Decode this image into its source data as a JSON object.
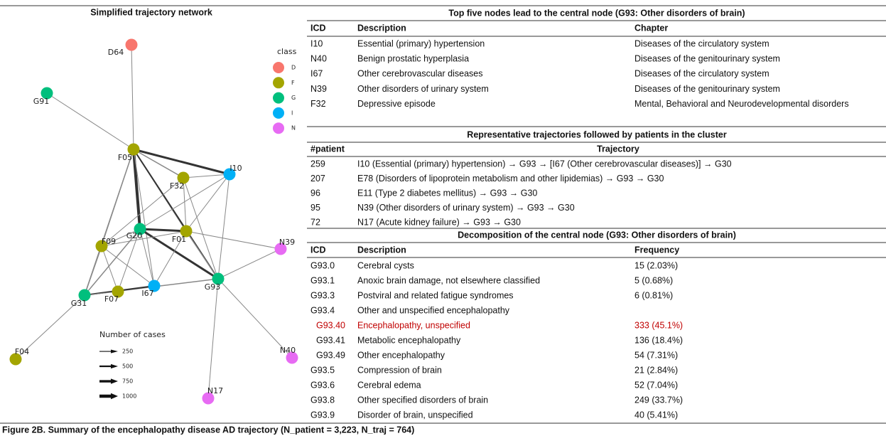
{
  "network": {
    "title": "Simplified trajectory network",
    "nodes": [
      "D64",
      "G91",
      "F05",
      "F32",
      "I10",
      "G20",
      "F01",
      "F09",
      "N39",
      "G93",
      "I67",
      "F07",
      "G31",
      "F04",
      "N40",
      "N17"
    ],
    "legend_class": {
      "title": "class",
      "items": [
        {
          "label": "D",
          "color": "#f8766d"
        },
        {
          "label": "F",
          "color": "#a3a500"
        },
        {
          "label": "G",
          "color": "#00bf7d"
        },
        {
          "label": "I",
          "color": "#00b0f6"
        },
        {
          "label": "N",
          "color": "#e76bf3"
        }
      ]
    },
    "legend_cases": {
      "title": "Number of cases",
      "items": [
        250,
        500,
        750,
        1000
      ]
    }
  },
  "table_top_nodes": {
    "title": "Top five nodes lead to the central node (G93: Other disorders of brain)",
    "columns": [
      "ICD",
      "Description",
      "Chapter"
    ],
    "rows": [
      [
        "I10",
        "Essential (primary) hypertension",
        "Diseases of the circulatory system"
      ],
      [
        "N40",
        "Benign prostatic hyperplasia",
        "Diseases of the genitourinary system"
      ],
      [
        "I67",
        "Other cerebrovascular diseases",
        "Diseases of the circulatory system"
      ],
      [
        "N39",
        "Other disorders of urinary system",
        "Diseases of the genitourinary system"
      ],
      [
        "F32",
        "Depressive episode",
        "Mental, Behavioral and Neurodevelopmental disorders"
      ]
    ]
  },
  "table_trajectories": {
    "title": "Representative trajectories followed by patients in the cluster",
    "columns": [
      "#patient",
      "Trajectory"
    ],
    "rows": [
      [
        "259",
        "I10 (Essential (primary) hypertension) → G93 → [I67 (Other cerebrovascular diseases)] → G30"
      ],
      [
        "207",
        "E78 (Disorders of lipoprotein metabolism and other lipidemias) → G93 → G30"
      ],
      [
        "96",
        "E11 (Type 2 diabetes mellitus) → G93 → G30"
      ],
      [
        "95",
        "N39 (Other disorders of urinary system) → G93 → G30"
      ],
      [
        "72",
        "N17 (Acute kidney failure) → G93 → G30"
      ]
    ]
  },
  "table_decomposition": {
    "title": "Decomposition of the central node (G93: Other disorders of brain)",
    "columns": [
      "ICD",
      "Description",
      "Frequency"
    ],
    "highlight_row": 4,
    "highlight_color": "#c00000",
    "rows": [
      [
        "G93.0",
        "Cerebral cysts",
        "15 (2.03%)"
      ],
      [
        "G93.1",
        "Anoxic brain damage, not elsewhere classified",
        "5 (0.68%)"
      ],
      [
        "G93.3",
        "Postviral and related fatigue syndromes",
        "6 (0.81%)"
      ],
      [
        "G93.4",
        "Other and unspecified encephalopathy",
        null
      ],
      [
        "G93.40",
        "Encephalopathy, unspecified",
        "333 (45.1%)"
      ],
      [
        "G93.41",
        "Metabolic encephalopathy",
        "136 (18.4%)"
      ],
      [
        "G93.49",
        "Other encephalopathy",
        "54 (7.31%)"
      ],
      [
        "G93.5",
        "Compression of brain",
        "21 (2.84%)"
      ],
      [
        "G93.6",
        "Cerebral edema",
        "52 (7.04%)"
      ],
      [
        "G93.8",
        "Other specified disorders of brain",
        "249 (33.7%)"
      ],
      [
        "G93.9",
        "Disorder of brain, unspecified",
        "40 (5.41%)"
      ]
    ]
  },
  "caption": "Figure 2B. Summary of the encephalopathy disease AD trajectory (N_patient = 3,223, N_traj = 764)"
}
